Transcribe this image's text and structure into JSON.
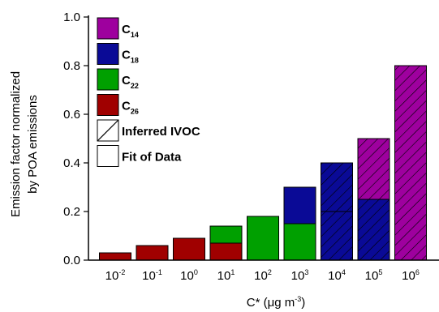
{
  "chart_data": {
    "type": "bar",
    "stacked": true,
    "title": "",
    "ylabel_line1": "Emission factor normalized",
    "ylabel_line2": "by POA emissions",
    "xlabel_prefix": "C* (μg m",
    "xlabel_exp": "-3",
    "xlabel_suffix": ")",
    "ylim": [
      0,
      1.0
    ],
    "yticks": [
      "0.0",
      "0.2",
      "0.4",
      "0.6",
      "0.8",
      "1.0"
    ],
    "categories": [
      {
        "base": "10",
        "exp": "-2"
      },
      {
        "base": "10",
        "exp": "-1"
      },
      {
        "base": "10",
        "exp": "0"
      },
      {
        "base": "10",
        "exp": "1"
      },
      {
        "base": "10",
        "exp": "2"
      },
      {
        "base": "10",
        "exp": "3"
      },
      {
        "base": "10",
        "exp": "4"
      },
      {
        "base": "10",
        "exp": "5"
      },
      {
        "base": "10",
        "exp": "6"
      }
    ],
    "series": [
      {
        "name": "C",
        "sub": "26",
        "color": "#a00000",
        "hatched": [
          false,
          false,
          false,
          false,
          false,
          false,
          false,
          false,
          false
        ],
        "values": [
          0.03,
          0.06,
          0.09,
          0.07,
          0,
          0,
          0,
          0,
          0
        ]
      },
      {
        "name": "C",
        "sub": "22",
        "color": "#00a000",
        "hatched": [
          false,
          false,
          false,
          false,
          false,
          false,
          false,
          false,
          false
        ],
        "values": [
          0,
          0,
          0,
          0.07,
          0.18,
          0.15,
          0,
          0,
          0
        ]
      },
      {
        "name": "C",
        "sub": "18",
        "color": "#0a0a96",
        "hatched": [
          false,
          false,
          false,
          false,
          false,
          false,
          true,
          true,
          false
        ],
        "values": [
          0,
          0,
          0,
          0,
          0,
          0.15,
          0.4,
          0.25,
          0
        ]
      },
      {
        "name": "C",
        "sub": "14",
        "color": "#9e009e",
        "hatched": [
          false,
          false,
          false,
          false,
          false,
          false,
          false,
          true,
          true
        ],
        "values": [
          0,
          0,
          0,
          0,
          0,
          0,
          0,
          0.25,
          0.8
        ]
      }
    ],
    "divider_lines": [
      {
        "category_index": 6,
        "at": 0.2
      }
    ],
    "legend": [
      {
        "label": "C",
        "sub": "14",
        "color": "#9e009e",
        "kind": "fill"
      },
      {
        "label": "C",
        "sub": "18",
        "color": "#0a0a96",
        "kind": "fill"
      },
      {
        "label": "C",
        "sub": "22",
        "color": "#00a000",
        "kind": "fill"
      },
      {
        "label": "C",
        "sub": "26",
        "color": "#a00000",
        "kind": "fill"
      },
      {
        "label": "Inferred IVOC",
        "sub": "",
        "color": "#ffffff",
        "kind": "hatch"
      },
      {
        "label": "Fit of Data",
        "sub": "",
        "color": "#ffffff",
        "kind": "empty"
      }
    ],
    "legend_position": "top-left",
    "grid": false
  }
}
